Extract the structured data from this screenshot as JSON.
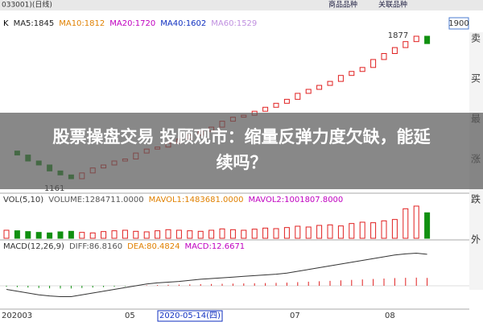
{
  "header": {
    "code": "033001)(日线)",
    "links": [
      "商品品种",
      "关联品种"
    ],
    "box": "1900"
  },
  "ma_labels": [
    "K",
    "MA5:1845",
    "MA10:1812",
    "MA20:1720",
    "MA40:1602",
    "MA60:1529"
  ],
  "right_column": [
    "卖",
    "买",
    "最",
    "涨",
    "跌",
    "外"
  ],
  "price_high": {
    "label": "1877",
    "value": 1877
  },
  "price_low": {
    "label": "1161",
    "value": 1161
  },
  "closes": [
    1300,
    1280,
    1250,
    1230,
    1200,
    1180,
    1161,
    1190,
    1215,
    1230,
    1250,
    1260,
    1290,
    1310,
    1320,
    1340,
    1360,
    1380,
    1400,
    1420,
    1450,
    1470,
    1480,
    1500,
    1520,
    1540,
    1560,
    1590,
    1610,
    1630,
    1650,
    1680,
    1700,
    1720,
    1760,
    1790,
    1820,
    1850,
    1877,
    1840
  ],
  "vol_label": [
    "VOL(5,10)",
    "VOLUME:1284711.0000",
    "MAVOL1:1483681.0000",
    "MAVOL2:1001807.8000"
  ],
  "volumes": [
    30,
    28,
    25,
    22,
    20,
    24,
    26,
    22,
    20,
    25,
    28,
    30,
    26,
    24,
    28,
    32,
    30,
    28,
    26,
    30,
    35,
    32,
    30,
    34,
    38,
    36,
    40,
    45,
    42,
    48,
    50,
    46,
    55,
    60,
    58,
    65,
    70,
    110,
    120,
    95
  ],
  "macd_label": [
    "MACD(12,26,9)",
    "DIFF:86.8160",
    "DEA:80.4824",
    "MACD:12.6671"
  ],
  "diff": [
    -10,
    -15,
    -20,
    -25,
    -28,
    -30,
    -30,
    -25,
    -20,
    -15,
    -10,
    -5,
    0,
    5,
    8,
    10,
    12,
    15,
    18,
    20,
    22,
    24,
    26,
    28,
    30,
    32,
    35,
    40,
    45,
    50,
    55,
    60,
    65,
    70,
    75,
    80,
    85,
    88,
    90,
    86.816
  ],
  "dates": [
    "202003",
    "05",
    "2020-05-14(四)",
    "07",
    "08"
  ],
  "banner": [
    "股票操盘交易 投顾观市：缩量反弹力度欠缺，能延",
    "续吗？"
  ]
}
